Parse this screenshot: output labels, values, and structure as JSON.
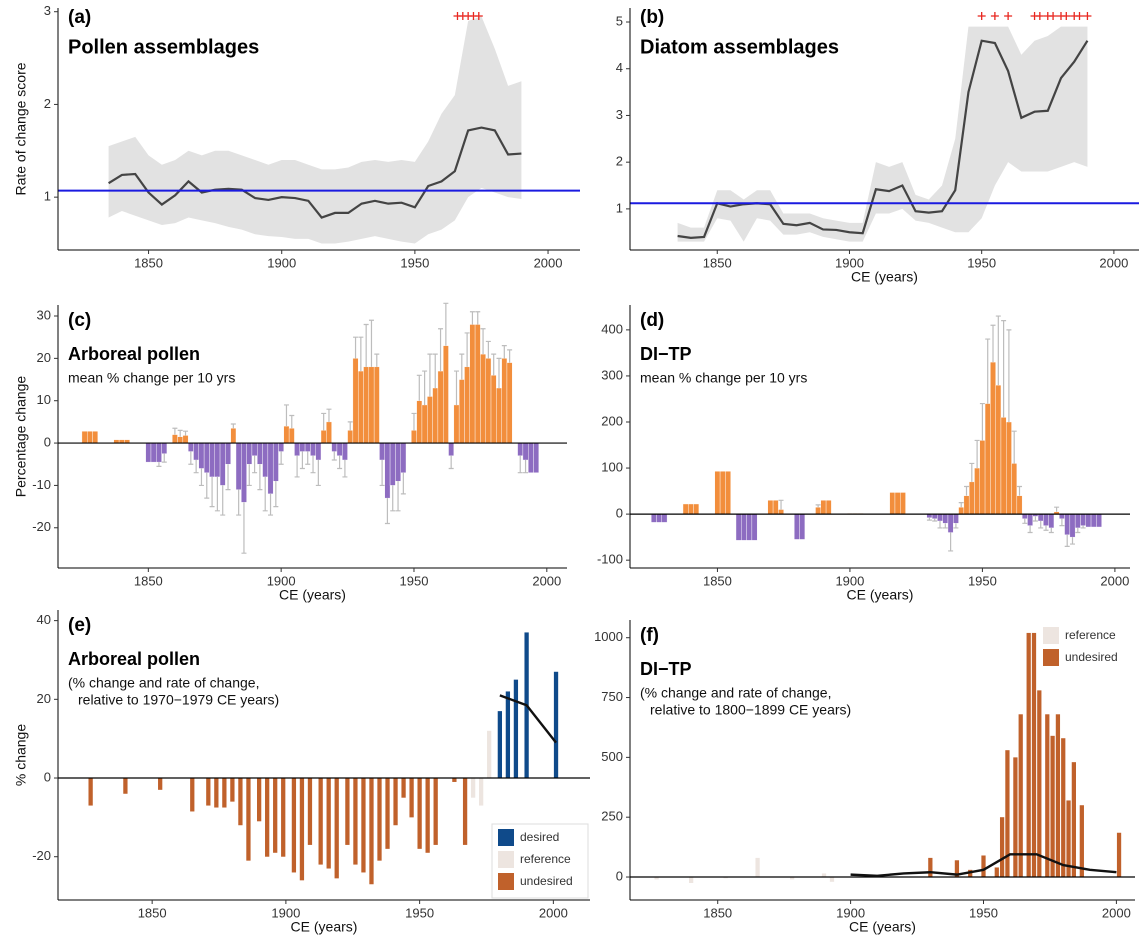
{
  "chart_data": [
    {
      "type": "line",
      "label": "(a)",
      "title": "Pollen assemblages",
      "ylabel": "Rate of change score",
      "x": [
        1835,
        1840,
        1845,
        1850,
        1855,
        1860,
        1865,
        1870,
        1875,
        1880,
        1885,
        1890,
        1895,
        1900,
        1905,
        1910,
        1915,
        1920,
        1925,
        1930,
        1935,
        1940,
        1945,
        1950,
        1955,
        1960,
        1965,
        1970,
        1975,
        1980,
        1985,
        1990
      ],
      "values": [
        1.15,
        1.24,
        1.25,
        1.05,
        0.92,
        1.02,
        1.17,
        1.05,
        1.08,
        1.09,
        1.08,
        0.99,
        0.97,
        1.0,
        0.99,
        0.96,
        0.78,
        0.83,
        0.83,
        0.93,
        0.96,
        0.93,
        0.94,
        0.89,
        1.12,
        1.17,
        1.28,
        1.72,
        1.75,
        1.72,
        1.46,
        1.47
      ],
      "lower": [
        0.78,
        0.85,
        0.8,
        0.75,
        0.7,
        0.72,
        0.78,
        0.75,
        0.72,
        0.68,
        0.65,
        0.6,
        0.58,
        0.57,
        0.55,
        0.55,
        0.5,
        0.5,
        0.52,
        0.55,
        0.58,
        0.55,
        0.52,
        0.5,
        0.6,
        0.65,
        0.75,
        1.0,
        1.1,
        1.05,
        1.0,
        0.98
      ],
      "upper": [
        1.55,
        1.6,
        1.65,
        1.45,
        1.35,
        1.4,
        1.5,
        1.45,
        1.5,
        1.5,
        1.45,
        1.4,
        1.35,
        1.4,
        1.4,
        1.35,
        1.3,
        1.3,
        1.32,
        1.38,
        1.4,
        1.38,
        1.4,
        1.38,
        1.6,
        1.9,
        2.1,
        2.9,
        2.95,
        2.6,
        2.2,
        2.25
      ],
      "line_color": "#444444",
      "band_color": "#e2e2e2",
      "reference_line": 1.07,
      "reference_color": "#1a1ae0",
      "markers_x": [
        1966,
        1968,
        1970,
        1972,
        1974
      ],
      "marker_color": "#e8261f",
      "xlim": [
        1816,
        2012
      ],
      "ylim": [
        0.43,
        3.04
      ],
      "xticks": [
        1850,
        1900,
        1950,
        2000
      ],
      "yticks": [
        1,
        2,
        3
      ]
    },
    {
      "type": "line",
      "label": "(b)",
      "title": "Diatom assemblages",
      "xlabel": "CE (years)",
      "x": [
        1835,
        1840,
        1845,
        1850,
        1855,
        1860,
        1865,
        1870,
        1875,
        1880,
        1885,
        1890,
        1895,
        1900,
        1905,
        1910,
        1915,
        1920,
        1925,
        1930,
        1935,
        1940,
        1945,
        1950,
        1955,
        1960,
        1965,
        1970,
        1975,
        1980,
        1985,
        1990
      ],
      "values": [
        0.42,
        0.38,
        0.4,
        1.12,
        1.05,
        1.1,
        1.12,
        1.1,
        0.68,
        0.65,
        0.7,
        0.56,
        0.55,
        0.5,
        0.48,
        1.42,
        1.38,
        1.5,
        0.95,
        0.92,
        0.95,
        1.4,
        3.5,
        4.6,
        4.55,
        3.95,
        2.95,
        3.08,
        3.1,
        3.8,
        4.15,
        4.6
      ],
      "lower": [
        0.3,
        0.3,
        0.3,
        0.8,
        0.75,
        0.3,
        0.8,
        0.75,
        0.45,
        0.45,
        0.5,
        0.4,
        0.35,
        0.3,
        0.3,
        0.9,
        0.9,
        1.0,
        0.75,
        0.7,
        0.6,
        0.5,
        0.5,
        0.8,
        1.5,
        2.0,
        1.8,
        1.8,
        1.8,
        1.9,
        2.0,
        1.9
      ],
      "upper": [
        0.7,
        0.6,
        0.6,
        1.4,
        1.4,
        1.2,
        1.4,
        1.4,
        0.9,
        0.9,
        0.9,
        0.8,
        0.75,
        0.7,
        0.7,
        2.0,
        1.9,
        2.0,
        1.3,
        1.2,
        1.5,
        2.5,
        4.9,
        4.9,
        4.9,
        4.9,
        4.3,
        4.6,
        4.7,
        4.9,
        4.9,
        4.9
      ],
      "line_color": "#444444",
      "band_color": "#e2e2e2",
      "reference_line": 1.12,
      "reference_color": "#1a1ae0",
      "markers_x": [
        1950,
        1955,
        1960,
        1970,
        1972,
        1975,
        1977,
        1980,
        1982,
        1985,
        1987,
        1990
      ],
      "marker_color": "#e8261f",
      "xlim": [
        1817,
        2009.5
      ],
      "ylim": [
        0.12,
        5.3
      ],
      "xticks": [
        1850,
        1900,
        1950,
        2000
      ],
      "yticks": [
        1,
        2,
        3,
        4,
        5
      ]
    },
    {
      "type": "bar",
      "label": "(c)",
      "title": "Arboreal pollen",
      "subtitle": [
        "mean % change per 10 yrs"
      ],
      "ylabel": "Percentage change",
      "xlabel": "CE (years)",
      "x": [
        1826,
        1828,
        1830,
        1838,
        1840,
        1842,
        1850,
        1852,
        1854,
        1856,
        1860,
        1862,
        1864,
        1866,
        1868,
        1870,
        1872,
        1874,
        1876,
        1878,
        1880,
        1882,
        1884,
        1886,
        1888,
        1890,
        1892,
        1894,
        1896,
        1898,
        1900,
        1902,
        1904,
        1906,
        1908,
        1910,
        1912,
        1914,
        1916,
        1918,
        1920,
        1922,
        1924,
        1926,
        1928,
        1930,
        1932,
        1934,
        1936,
        1938,
        1940,
        1942,
        1944,
        1946,
        1950,
        1952,
        1954,
        1956,
        1958,
        1960,
        1962,
        1964,
        1966,
        1968,
        1970,
        1972,
        1974,
        1976,
        1978,
        1980,
        1982,
        1984,
        1986,
        1990,
        1992,
        1994,
        1996
      ],
      "values": [
        2.8,
        2.8,
        2.8,
        0.8,
        0.8,
        0.8,
        -4.5,
        -4.5,
        -4.5,
        -2.5,
        2,
        1.5,
        1.8,
        -2,
        -4,
        -6,
        -7,
        -8,
        -8,
        -10,
        -5,
        3.5,
        -11,
        -14,
        -5,
        -3,
        -5,
        -8,
        -12,
        -9,
        -2,
        4,
        3.5,
        -3,
        -2,
        -2,
        -3,
        -4,
        3,
        5,
        -2,
        -3,
        -4,
        3,
        20,
        17,
        18,
        18,
        18,
        -4,
        -13,
        -10,
        -9,
        -7,
        3,
        10,
        9,
        11,
        13,
        17,
        23,
        -3,
        9,
        15,
        18,
        28,
        28,
        21,
        20,
        16,
        13,
        20,
        19,
        -3,
        -4,
        -7,
        -7
      ],
      "errors": [
        0,
        0,
        0,
        0,
        0,
        0,
        0,
        0,
        1,
        2,
        1.5,
        1.5,
        1,
        3,
        3,
        4,
        6,
        7,
        8,
        7,
        6,
        1,
        6,
        12,
        5,
        4,
        6,
        8,
        5,
        6,
        3,
        5,
        3,
        5,
        4,
        3,
        4,
        6,
        4,
        3,
        2,
        3,
        4,
        2,
        5,
        8,
        10,
        11,
        3,
        6,
        6,
        6,
        7,
        5,
        4,
        6,
        8,
        10,
        8,
        10,
        10,
        3,
        8,
        6,
        8,
        3,
        3,
        6,
        4,
        5,
        7,
        3,
        3,
        4,
        3,
        0,
        0
      ],
      "bar_width": 2,
      "pos_color": "#f28e3c",
      "neg_color": "#8d6cc1",
      "error_color": "#bdbdbd",
      "zero_line": true,
      "xlim": [
        1816,
        2007.6
      ],
      "ylim": [
        -29.5,
        32.6
      ],
      "xticks": [
        1850,
        1900,
        1950,
        2000
      ],
      "yticks": [
        -20,
        -10,
        0,
        10,
        20,
        30
      ]
    },
    {
      "type": "bar",
      "label": "(d)",
      "title": "DI−TP",
      "subtitle": [
        "mean % change per 10 yrs"
      ],
      "xlabel": "CE (years)",
      "x": [
        1826,
        1828,
        1830,
        1838,
        1840,
        1842,
        1850,
        1852,
        1854,
        1858,
        1860,
        1862,
        1864,
        1870,
        1872,
        1874,
        1880,
        1882,
        1888,
        1890,
        1892,
        1900,
        1902,
        1904,
        1916,
        1918,
        1920,
        1930,
        1932,
        1934,
        1936,
        1938,
        1940,
        1942,
        1944,
        1946,
        1948,
        1950,
        1952,
        1954,
        1956,
        1958,
        1960,
        1962,
        1964,
        1966,
        1968,
        1970,
        1972,
        1974,
        1976,
        1978,
        1980,
        1982,
        1984,
        1986,
        1988,
        1990,
        1992,
        1994
      ],
      "values": [
        -18,
        -18,
        -18,
        22,
        22,
        22,
        93,
        93,
        93,
        -57,
        -57,
        -57,
        -57,
        30,
        30,
        10,
        -55,
        -55,
        15,
        30,
        30,
        2,
        2,
        2,
        47,
        47,
        47,
        -8,
        -10,
        -15,
        -20,
        -40,
        -20,
        15,
        40,
        70,
        100,
        160,
        240,
        330,
        280,
        210,
        200,
        110,
        40,
        -10,
        -25,
        -5,
        -15,
        -25,
        -30,
        5,
        -10,
        -45,
        -50,
        -30,
        -25,
        -28,
        -28,
        -28
      ],
      "errors": [
        0,
        0,
        0,
        0,
        0,
        0,
        0,
        0,
        0,
        0,
        0,
        0,
        0,
        0,
        0,
        20,
        0,
        0,
        5,
        0,
        0,
        0,
        0,
        0,
        0,
        0,
        0,
        5,
        5,
        15,
        10,
        40,
        10,
        10,
        20,
        40,
        60,
        80,
        140,
        80,
        150,
        210,
        200,
        70,
        20,
        10,
        15,
        10,
        15,
        10,
        10,
        10,
        15,
        25,
        15,
        10,
        5,
        0,
        0,
        0
      ],
      "bar_width": 2,
      "pos_color": "#f28e3c",
      "neg_color": "#8d6cc1",
      "error_color": "#bdbdbd",
      "zero_line": true,
      "xlim": [
        1817,
        2005.7
      ],
      "ylim": [
        -117,
        454
      ],
      "xticks": [
        1850,
        1900,
        1950,
        2000
      ],
      "yticks": [
        -100,
        0,
        100,
        200,
        300,
        400
      ]
    },
    {
      "type": "bar",
      "label": "(e)",
      "title": "Arboreal pollen",
      "subtitle": [
        "(% change and rate of change,",
        "relative to 1970−1979 CE years)"
      ],
      "ylabel": "% change",
      "xlabel": "CE (years)",
      "x": [
        1827,
        1840,
        1853,
        1865,
        1871,
        1874,
        1877,
        1880,
        1883,
        1886,
        1890,
        1893,
        1896,
        1899,
        1903,
        1906,
        1909,
        1913,
        1916,
        1919,
        1923,
        1926,
        1929,
        1932,
        1935,
        1938,
        1941,
        1944,
        1947,
        1950,
        1953,
        1956,
        1963,
        1967,
        1970,
        1973,
        1976,
        1980,
        1983,
        1986,
        1990,
        2001
      ],
      "values": [
        -7,
        -4,
        -3,
        -8.5,
        -7,
        -7.5,
        -7.5,
        -6,
        -12,
        -21,
        -11,
        -20,
        -19,
        -20,
        -24,
        -26,
        -17,
        -22,
        -23,
        -25.5,
        -17,
        -22,
        -24,
        -27,
        -21,
        -18,
        -12,
        -5,
        -10,
        -18,
        -19,
        -17,
        -1,
        -17,
        -5,
        -7,
        12,
        17,
        22,
        25,
        37,
        27
      ],
      "groups": [
        2,
        2,
        2,
        2,
        2,
        2,
        2,
        2,
        2,
        2,
        2,
        2,
        2,
        2,
        2,
        2,
        2,
        2,
        2,
        2,
        2,
        2,
        2,
        2,
        2,
        2,
        2,
        2,
        2,
        2,
        2,
        2,
        2,
        2,
        1,
        1,
        1,
        0,
        0,
        0,
        0,
        0
      ],
      "legend": [
        {
          "name": "desired",
          "color": "#0f4a8a"
        },
        {
          "name": "reference",
          "color": "#ede5e0"
        },
        {
          "name": "undesired",
          "color": "#c0612b"
        }
      ],
      "legend_position": "bottom-right",
      "bar_width": 1.6,
      "zero_line": true,
      "line": {
        "x": [
          1980,
          1990,
          2001
        ],
        "values": [
          21,
          18.5,
          9
        ],
        "color": "#111111"
      },
      "xlim": [
        1814.8,
        2013.7
      ],
      "ylim": [
        -31,
        42.7
      ],
      "xticks": [
        1850,
        1900,
        1950,
        2000
      ],
      "yticks": [
        -20,
        0,
        20,
        40
      ]
    },
    {
      "type": "bar",
      "label": "(f)",
      "title": "DI−TP",
      "subtitle": [
        "(% change and rate of change,",
        "relative to 1800−1899 CE years)"
      ],
      "xlabel": "CE (years)",
      "x": [
        1827,
        1840,
        1853,
        1865,
        1878,
        1890,
        1893,
        1930,
        1940,
        1945,
        1950,
        1955,
        1957,
        1959,
        1962,
        1964,
        1967,
        1969,
        1971,
        1974,
        1976,
        1978,
        1980,
        1982,
        1984,
        1987,
        2001
      ],
      "values": [
        -10,
        -25,
        -5,
        80,
        -10,
        15,
        -20,
        80,
        70,
        30,
        90,
        40,
        250,
        530,
        500,
        680,
        1020,
        1020,
        780,
        680,
        590,
        680,
        580,
        320,
        480,
        300,
        185
      ],
      "groups": [
        0,
        0,
        0,
        0,
        0,
        0,
        0,
        1,
        1,
        1,
        1,
        1,
        1,
        1,
        1,
        1,
        1,
        1,
        1,
        1,
        1,
        1,
        1,
        1,
        1,
        1,
        1
      ],
      "legend": [
        {
          "name": "reference",
          "color": "#ede5e0"
        },
        {
          "name": "undesired",
          "color": "#c0612b"
        }
      ],
      "legend_position": "top-right",
      "bar_width": 1.6,
      "zero_line": true,
      "line": {
        "x": [
          1900,
          1910,
          1920,
          1930,
          1940,
          1950,
          1960,
          1970,
          1980,
          1990,
          2000
        ],
        "values": [
          10,
          5,
          15,
          20,
          10,
          30,
          95,
          95,
          50,
          30,
          20
        ],
        "color": "#111111"
      },
      "xlim": [
        1817,
        2007
      ],
      "ylim": [
        -96,
        1074
      ],
      "xticks": [
        1850,
        1900,
        1950,
        2000
      ],
      "yticks": [
        0,
        250,
        500,
        750,
        1000
      ]
    }
  ]
}
